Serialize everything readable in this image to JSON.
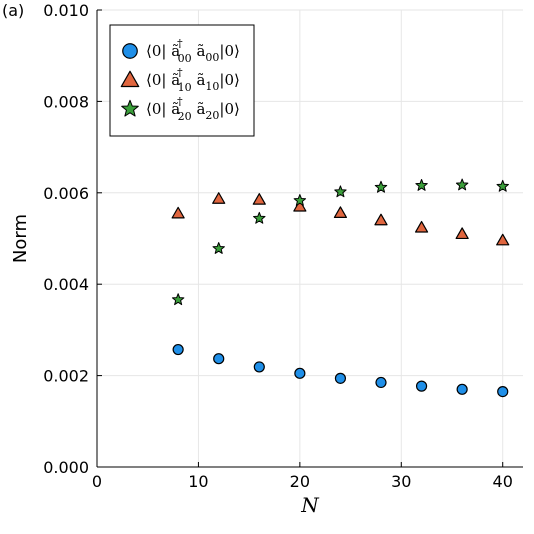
{
  "chart_data": {
    "type": "scatter",
    "panel_label": "(a)",
    "xlabel": "N",
    "ylabel": "Norm",
    "xlim": [
      0,
      42
    ],
    "ylim": [
      0,
      0.01
    ],
    "xticks": [
      0,
      10,
      20,
      30,
      40
    ],
    "yticks": [
      0.0,
      0.002,
      0.004,
      0.006,
      0.008,
      0.01
    ],
    "ytick_labels": [
      "0.000",
      "0.002",
      "0.004",
      "0.006",
      "0.008",
      "0.010"
    ],
    "grid": true,
    "legend_position": "top-left",
    "series": [
      {
        "name": "⟨0| ã†₀₀ ã₀₀|0⟩",
        "legend_parts": {
          "bra": "⟨0| ",
          "op": "ã",
          "sup": "†",
          "sub": "00",
          "mid": " ã",
          "sub2": "00",
          "ket": "|0⟩"
        },
        "marker": "circle",
        "color": "#1f8fe8",
        "x": [
          8,
          12,
          16,
          20,
          24,
          28,
          32,
          36,
          40
        ],
        "y": [
          0.00257,
          0.00237,
          0.00219,
          0.00205,
          0.00194,
          0.00185,
          0.00177,
          0.0017,
          0.00165
        ]
      },
      {
        "name": "⟨0| ã†₁₀ ã₁₀|0⟩",
        "legend_parts": {
          "bra": "⟨0| ",
          "op": "ã",
          "sup": "†",
          "sub": "10",
          "mid": " ã",
          "sub2": "10",
          "ket": "|0⟩"
        },
        "marker": "triangle",
        "color": "#e0663f",
        "x": [
          8,
          12,
          16,
          20,
          24,
          28,
          32,
          36,
          40
        ],
        "y": [
          0.00555,
          0.00587,
          0.00585,
          0.0057,
          0.00556,
          0.0054,
          0.00524,
          0.0051,
          0.00496
        ]
      },
      {
        "name": "⟨0| ã†₂₀ ã₂₀|0⟩",
        "legend_parts": {
          "bra": "⟨0| ",
          "op": "ã",
          "sup": "†",
          "sub": "20",
          "mid": " ã",
          "sub2": "20",
          "ket": "|0⟩"
        },
        "marker": "star",
        "color": "#3a9e3a",
        "x": [
          8,
          12,
          16,
          20,
          24,
          28,
          32,
          36,
          40
        ],
        "y": [
          0.00366,
          0.00478,
          0.00544,
          0.00583,
          0.00602,
          0.00612,
          0.00616,
          0.00617,
          0.00614
        ]
      }
    ]
  }
}
